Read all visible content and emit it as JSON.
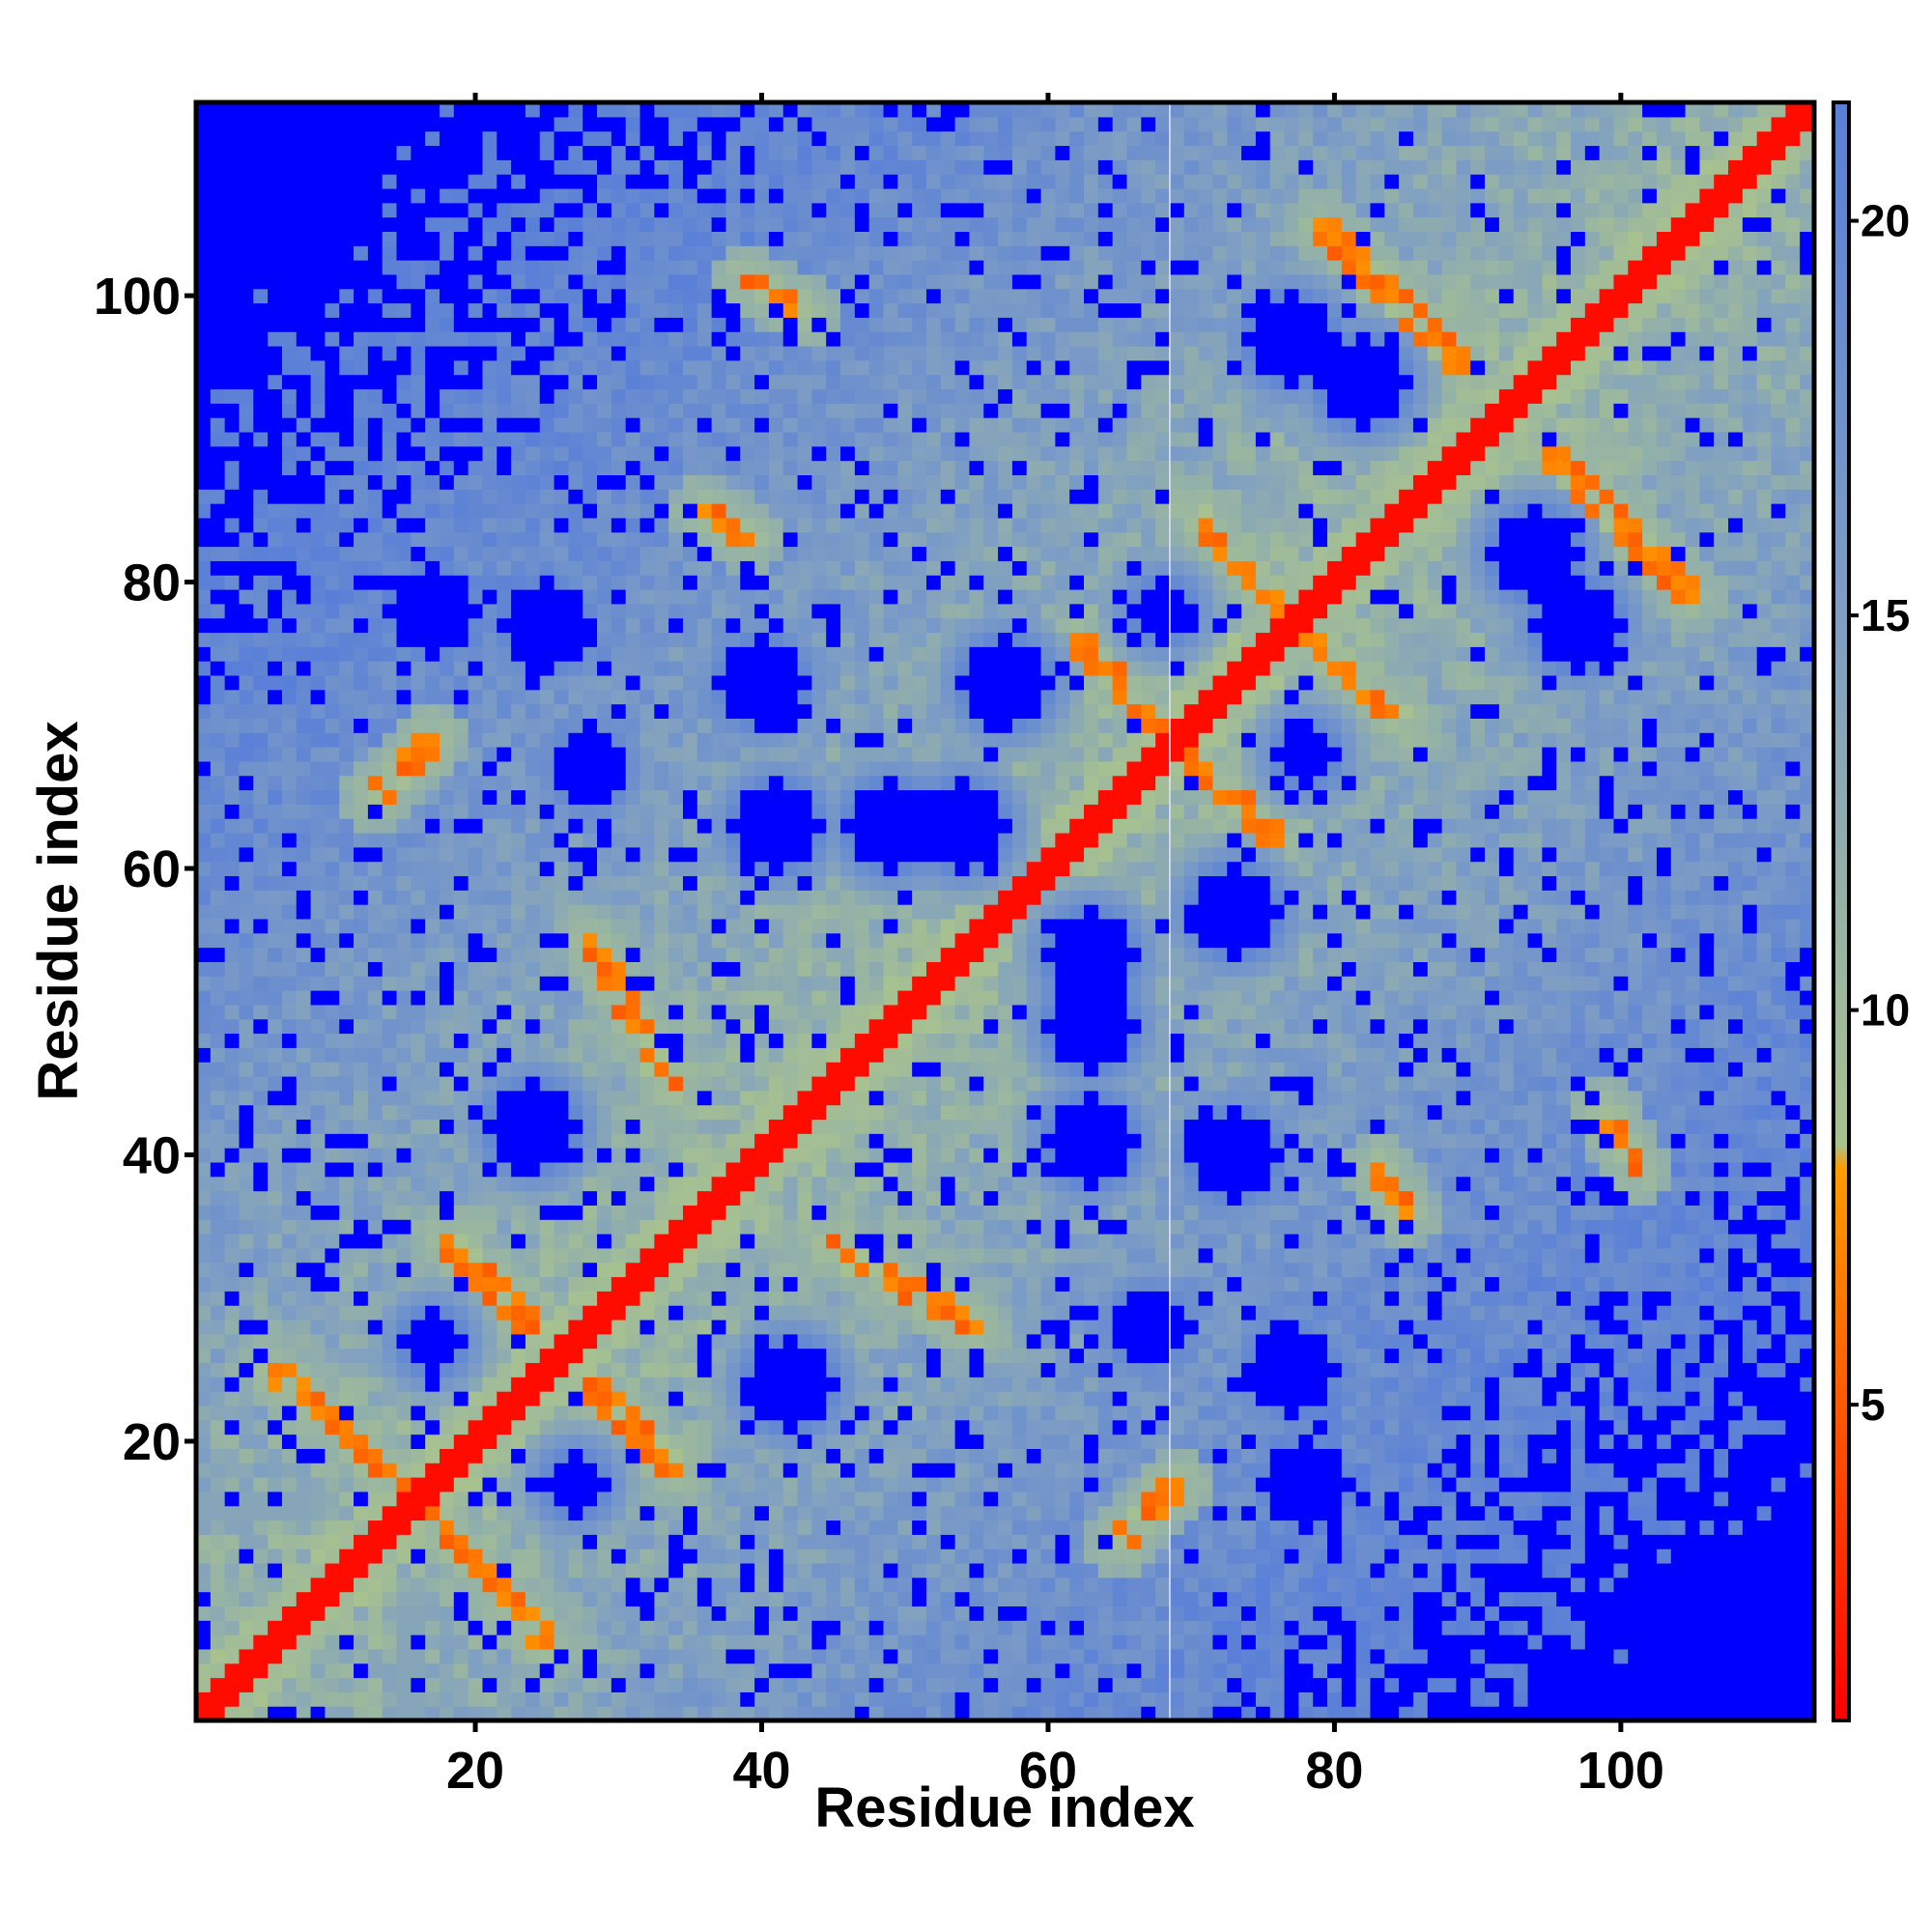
{
  "chart_data": {
    "type": "heatmap",
    "title": "",
    "xlabel": "Residue index",
    "ylabel": "Residue index",
    "n_residues": 113,
    "xlim": [
      1,
      113
    ],
    "ylim": [
      1,
      113
    ],
    "x_ticks": [
      20,
      40,
      60,
      80,
      100
    ],
    "y_ticks": [
      20,
      40,
      60,
      80,
      100
    ],
    "colorbar": {
      "ticks": [
        5,
        10,
        15,
        20
      ],
      "range": [
        1,
        21.5
      ],
      "stops": [
        {
          "value": 1,
          "color": "#ff0000"
        },
        {
          "value": 8,
          "color": "#ff9c00"
        },
        {
          "value": 8.3,
          "color": "#a9c38d"
        },
        {
          "value": 15,
          "color": "#7e9ec4"
        },
        {
          "value": 21.5,
          "color": "#5a7fd8"
        }
      ]
    },
    "cutoff_color": "#0000ff",
    "diagonal_value": 1.5,
    "contact_bands": [
      {
        "x": [
          6,
          16
        ],
        "y": [
          25,
          16
        ],
        "value": 5
      },
      {
        "x": [
          18,
          24
        ],
        "y": [
          34,
          28
        ],
        "value": 5
      },
      {
        "x": [
          28,
          34
        ],
        "y": [
          55,
          44
        ],
        "value": 5
      },
      {
        "x": [
          24,
          34
        ],
        "y": [
          19,
          12
        ],
        "value": 5
      },
      {
        "x": [
          44,
          56
        ],
        "y": [
          35,
          27
        ],
        "value": 5
      },
      {
        "x": [
          62,
          70
        ],
        "y": [
          76,
          68
        ],
        "value": 5
      },
      {
        "x": [
          70,
          76
        ],
        "y": [
          85,
          78
        ],
        "value": 5
      },
      {
        "x": [
          77,
          87
        ],
        "y": [
          75,
          67
        ],
        "value": 5
      },
      {
        "x": [
          70,
          78
        ],
        "y": [
          67,
          60
        ],
        "value": 5
      },
      {
        "x": [
          79,
          89
        ],
        "y": [
          105,
          95
        ],
        "value": 5
      },
      {
        "x": [
          92,
          104
        ],
        "y": [
          90,
          80
        ],
        "value": 5
      },
      {
        "x": [
          18,
          24
        ],
        "y": [
          16,
          8
        ],
        "value": 5
      },
      {
        "x": [
          13,
          17
        ],
        "y": [
          65,
          69
        ],
        "value": 5
      },
      {
        "x": [
          65,
          68
        ],
        "y": [
          13,
          17
        ],
        "value": 5
      },
      {
        "x": [
          39,
          43
        ],
        "y": [
          101,
          99
        ],
        "value": 5
      },
      {
        "x": [
          36,
          39
        ],
        "y": [
          85,
          83
        ],
        "value": 5
      },
      {
        "x": [
          81,
          84
        ],
        "y": [
          41,
          37
        ],
        "value": 5
      },
      {
        "x": [
          100,
          101
        ],
        "y": [
          43,
          40
        ],
        "value": 5
      }
    ],
    "void_regions": [
      {
        "x": [
          1,
          12
        ],
        "y": [
          113,
          55
        ]
      },
      {
        "x": [
          15,
          40
        ],
        "y": [
          113,
          101
        ]
      },
      {
        "x": [
          29,
          49
        ],
        "y": [
          97,
          90
        ]
      },
      {
        "x": [
          45,
          60
        ],
        "y": [
          113,
          102
        ]
      },
      {
        "x": [
          49,
          66
        ],
        "y": [
          99,
          82
        ]
      },
      {
        "x": [
          96,
          113
        ],
        "y": [
          40,
          1
        ]
      },
      {
        "x": [
          84,
          96
        ],
        "y": [
          32,
          1
        ]
      },
      {
        "x": [
          72,
          113
        ],
        "y": [
          12,
          1
        ]
      },
      {
        "x": [
          104,
          113
        ],
        "y": [
          64,
          40
        ]
      },
      {
        "x": [
          90,
          100
        ],
        "y": [
          60,
          43
        ]
      },
      {
        "x": [
          34,
          46
        ],
        "y": [
          16,
          1
        ]
      },
      {
        "x": [
          1,
          10
        ],
        "y": [
          44,
          36
        ]
      },
      {
        "x": [
          1,
          8
        ],
        "y": [
          18,
          13
        ]
      }
    ],
    "void_pockets": [
      {
        "x": 24,
        "y": 42,
        "r": 3
      },
      {
        "x": 37,
        "y": 26,
        "r": 3
      },
      {
        "x": 47,
        "y": 26,
        "r": 3
      },
      {
        "x": 63,
        "y": 43,
        "r": 3
      },
      {
        "x": 62,
        "y": 52,
        "r": 3
      },
      {
        "x": 28,
        "y": 67,
        "r": 2.5
      },
      {
        "x": 41,
        "y": 63,
        "r": 3
      },
      {
        "x": 49,
        "y": 63,
        "r": 3
      },
      {
        "x": 54,
        "y": 63,
        "r": 3
      },
      {
        "x": 57,
        "y": 73,
        "r": 3
      },
      {
        "x": 40,
        "y": 73,
        "r": 3
      },
      {
        "x": 25,
        "y": 77,
        "r": 3
      },
      {
        "x": 17,
        "y": 78,
        "r": 3
      },
      {
        "x": 82,
        "y": 94,
        "r": 3
      },
      {
        "x": 77,
        "y": 97,
        "r": 3
      },
      {
        "x": 88,
        "y": 76,
        "r": 3
      },
      {
        "x": 99,
        "y": 76,
        "r": 3
      },
      {
        "x": 77,
        "y": 67,
        "r": 3
      },
      {
        "x": 71,
        "y": 27,
        "r": 2.5
      },
      {
        "x": 17,
        "y": 27,
        "r": 2
      },
      {
        "x": 68,
        "y": 78,
        "r": 2
      }
    ],
    "missing_column": 68.5
  }
}
